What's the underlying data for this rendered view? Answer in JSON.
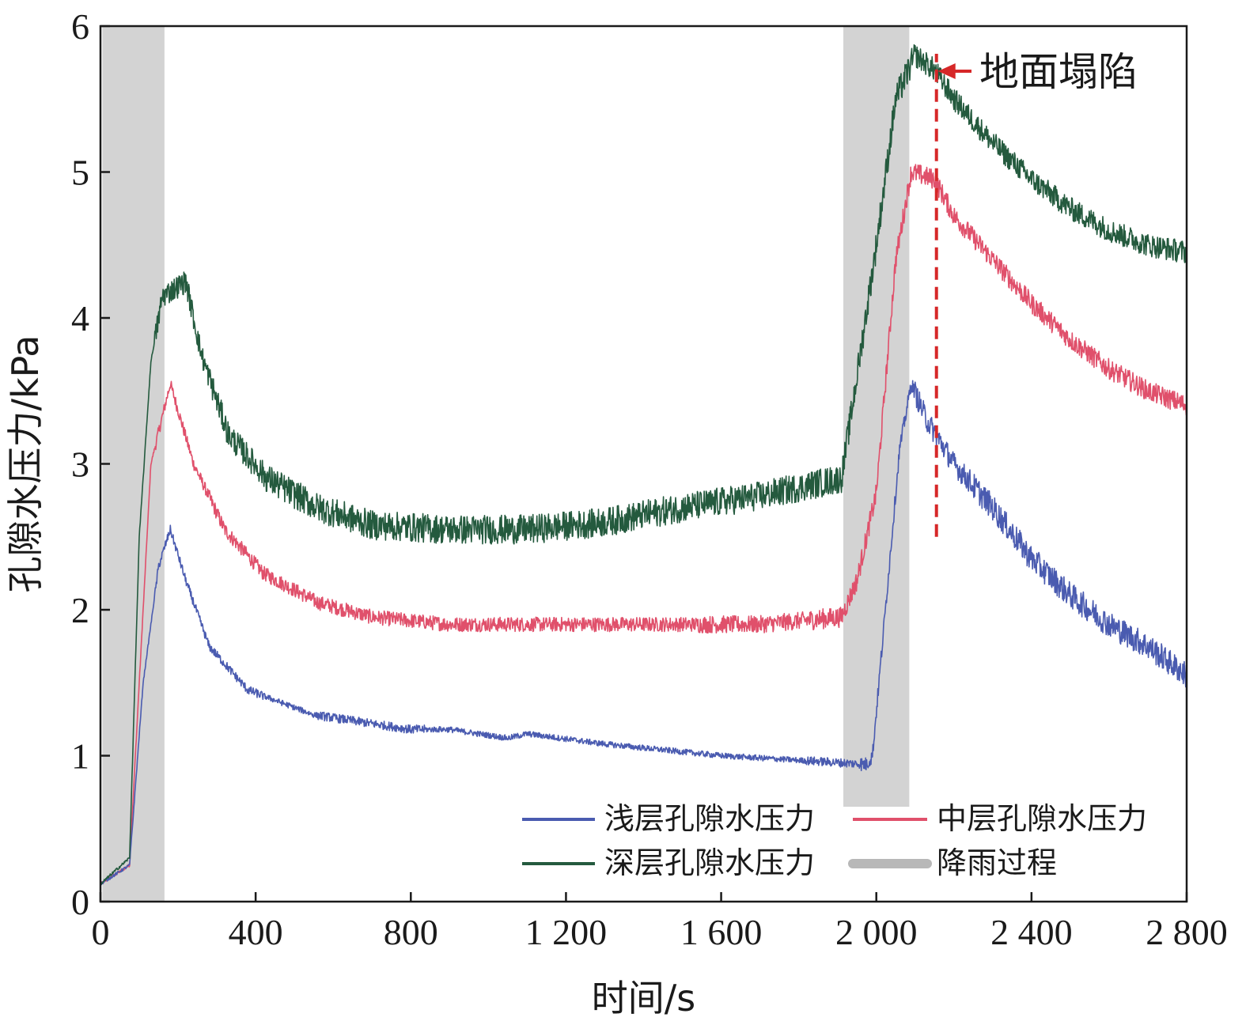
{
  "chart_data": {
    "type": "line",
    "xlabel": "时间/s",
    "ylabel": "孔隙水压力/kPa",
    "xlim": [
      0,
      2800
    ],
    "ylim": [
      0,
      6
    ],
    "x_ticks": [
      0,
      400,
      800,
      1200,
      1600,
      2000,
      2400,
      2800
    ],
    "x_tick_labels": [
      "0",
      "400",
      "800",
      "1 200",
      "1 600",
      "2 000",
      "2 400",
      "2 800"
    ],
    "y_ticks": [
      0,
      1,
      2,
      3,
      4,
      5,
      6
    ],
    "y_tick_labels": [
      "0",
      "1",
      "2",
      "3",
      "4",
      "5",
      "6"
    ],
    "grid": false,
    "legend_position": "bottom-right",
    "rain_periods": {
      "label": "降雨过程",
      "color": "#d3d3d3",
      "ranges": [
        {
          "x": [
            5,
            165
          ],
          "y": [
            0,
            6
          ]
        },
        {
          "x": [
            1915,
            2085
          ],
          "y": [
            0.65,
            6
          ]
        }
      ]
    },
    "annotation": {
      "text": "地面塌陷",
      "x": 2155,
      "y_range": [
        2.5,
        5.75
      ],
      "color": "#d62728"
    },
    "series": [
      {
        "name": "浅层孔隙水压力",
        "color": "#4a5bb0",
        "noise": [
          0.01,
          0.03,
          0.03,
          0.02,
          0.03,
          0.03,
          0.02,
          0.02,
          0.02,
          0.02,
          0.02,
          0.02,
          0.02,
          0.03,
          0.05,
          0.08,
          0.09,
          0.09,
          0.09,
          0.09
        ],
        "x": [
          0,
          75,
          110,
          150,
          180,
          220,
          280,
          380,
          550,
          800,
          900,
          1050,
          1100,
          1300,
          1600,
          1920,
          1975,
          1990,
          2060,
          2090,
          2130,
          2200,
          2300,
          2400,
          2500,
          2600,
          2700,
          2800
        ],
        "y": [
          0.12,
          0.25,
          1.5,
          2.3,
          2.55,
          2.2,
          1.75,
          1.45,
          1.28,
          1.18,
          1.18,
          1.12,
          1.15,
          1.08,
          1.0,
          0.95,
          0.94,
          1.0,
          3.1,
          3.55,
          3.3,
          3.0,
          2.7,
          2.35,
          2.1,
          1.9,
          1.75,
          1.55
        ]
      },
      {
        "name": "中层孔隙水压力",
        "color": "#e0506b",
        "noise": [
          0.01,
          0.04,
          0.05,
          0.05,
          0.05,
          0.05,
          0.05,
          0.05,
          0.05,
          0.05,
          0.05,
          0.06,
          0.06,
          0.07,
          0.07,
          0.07,
          0.07,
          0.07,
          0.07,
          0.07
        ],
        "x": [
          0,
          75,
          100,
          130,
          180,
          240,
          320,
          420,
          560,
          700,
          900,
          1300,
          1700,
          1910,
          1950,
          2000,
          2050,
          2090,
          2150,
          2200,
          2250,
          2300,
          2400,
          2500,
          2600,
          2700,
          2800
        ],
        "y": [
          0.12,
          0.25,
          1.5,
          3.0,
          3.55,
          3.0,
          2.55,
          2.25,
          2.05,
          1.95,
          1.9,
          1.9,
          1.9,
          1.95,
          2.2,
          2.8,
          4.4,
          5.0,
          4.95,
          4.7,
          4.55,
          4.4,
          4.1,
          3.85,
          3.65,
          3.5,
          3.4
        ]
      },
      {
        "name": "深层孔隙水压力",
        "color": "#245a3e",
        "noise": [
          0.01,
          0.08,
          0.09,
          0.1,
          0.1,
          0.1,
          0.1,
          0.1,
          0.1,
          0.1,
          0.1,
          0.1,
          0.1,
          0.1,
          0.1,
          0.08,
          0.08,
          0.08,
          0.08,
          0.08
        ],
        "x": [
          0,
          75,
          100,
          130,
          160,
          190,
          220,
          260,
          330,
          430,
          560,
          700,
          900,
          1100,
          1300,
          1500,
          1700,
          1910,
          1950,
          2000,
          2050,
          2100,
          2150,
          2200,
          2300,
          2400,
          2500,
          2600,
          2700,
          2800
        ],
        "y": [
          0.12,
          0.3,
          2.5,
          3.7,
          4.15,
          4.2,
          4.25,
          3.75,
          3.2,
          2.9,
          2.7,
          2.58,
          2.55,
          2.55,
          2.6,
          2.7,
          2.78,
          2.9,
          3.6,
          4.5,
          5.5,
          5.8,
          5.7,
          5.5,
          5.2,
          4.95,
          4.75,
          4.6,
          4.5,
          4.45
        ]
      }
    ]
  }
}
